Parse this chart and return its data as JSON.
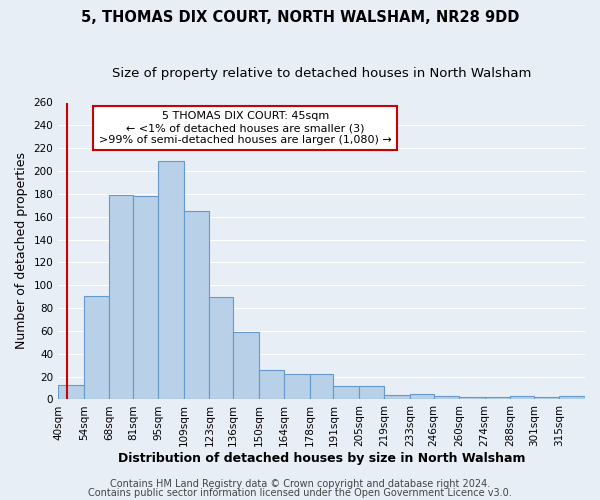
{
  "title": "5, THOMAS DIX COURT, NORTH WALSHAM, NR28 9DD",
  "subtitle": "Size of property relative to detached houses in North Walsham",
  "xlabel": "Distribution of detached houses by size in North Walsham",
  "ylabel": "Number of detached properties",
  "bin_labels": [
    "40sqm",
    "54sqm",
    "68sqm",
    "81sqm",
    "95sqm",
    "109sqm",
    "123sqm",
    "136sqm",
    "150sqm",
    "164sqm",
    "178sqm",
    "191sqm",
    "205sqm",
    "219sqm",
    "233sqm",
    "246sqm",
    "260sqm",
    "274sqm",
    "288sqm",
    "301sqm",
    "315sqm"
  ],
  "bar_values": [
    13,
    91,
    179,
    178,
    209,
    165,
    90,
    59,
    26,
    22,
    22,
    12,
    12,
    4,
    5,
    3,
    2,
    2,
    3,
    2,
    3
  ],
  "bar_color": "#b8d0e8",
  "bar_edge_color": "#6699cc",
  "bin_edges": [
    40,
    54,
    68,
    81,
    95,
    109,
    123,
    136,
    150,
    164,
    178,
    191,
    205,
    219,
    233,
    246,
    260,
    274,
    288,
    301,
    315,
    329
  ],
  "red_line_x": 45,
  "annotation_line1": "5 THOMAS DIX COURT: 45sqm",
  "annotation_line2": "← <1% of detached houses are smaller (3)",
  "annotation_line3": ">99% of semi-detached houses are larger (1,080) →",
  "annotation_box_color": "#ffffff",
  "annotation_box_edge": "#cc0000",
  "ylim": [
    0,
    260
  ],
  "yticks": [
    0,
    20,
    40,
    60,
    80,
    100,
    120,
    140,
    160,
    180,
    200,
    220,
    240,
    260
  ],
  "footer1": "Contains HM Land Registry data © Crown copyright and database right 2024.",
  "footer2": "Contains public sector information licensed under the Open Government Licence v3.0.",
  "background_color": "#e8eef5",
  "grid_color": "#ffffff",
  "title_fontsize": 10.5,
  "subtitle_fontsize": 9.5,
  "axis_label_fontsize": 9,
  "tick_fontsize": 7.5,
  "annotation_fontsize": 8,
  "footer_fontsize": 7
}
